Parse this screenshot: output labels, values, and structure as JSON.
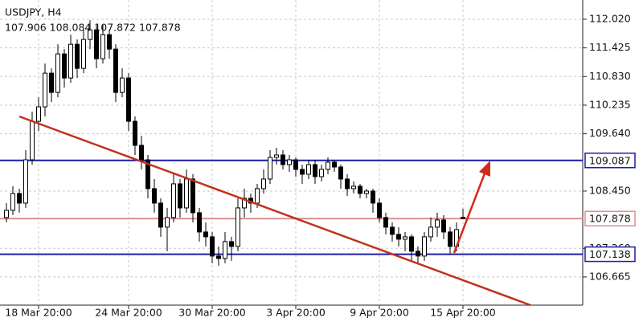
{
  "chart_data": {
    "type": "candlestick",
    "title": "USDJPY, H4",
    "subtitle": "107.906 108.084 107.872 107.878",
    "categories": [
      null,
      null,
      null,
      null,
      null,
      "18 Mar 20:00",
      null,
      null,
      null,
      null,
      null,
      null,
      null,
      null,
      null,
      null,
      null,
      null,
      null,
      "24 Mar 20:00",
      null,
      null,
      null,
      null,
      null,
      null,
      null,
      null,
      null,
      null,
      null,
      null,
      "30 Mar 20:00",
      null,
      null,
      null,
      null,
      null,
      null,
      null,
      null,
      null,
      null,
      null,
      null,
      "3 Apr 20:00",
      null,
      null,
      null,
      null,
      null,
      null,
      null,
      null,
      null,
      null,
      null,
      null,
      "9 Apr 20:00",
      null,
      null,
      null,
      null,
      null,
      null,
      null,
      null,
      null,
      null,
      null,
      null,
      "15 Apr 20:00"
    ],
    "ohlc": [
      [
        107.9,
        108.2,
        107.8,
        108.05
      ],
      [
        108.05,
        108.55,
        107.95,
        108.4
      ],
      [
        108.4,
        108.5,
        108.0,
        108.2
      ],
      [
        108.2,
        109.3,
        108.1,
        109.1
      ],
      [
        109.1,
        110.1,
        109.0,
        109.9
      ],
      [
        109.9,
        110.4,
        109.7,
        110.2
      ],
      [
        110.2,
        111.1,
        110.0,
        110.9
      ],
      [
        110.9,
        111.0,
        110.3,
        110.5
      ],
      [
        110.5,
        111.5,
        110.4,
        111.3
      ],
      [
        111.3,
        111.4,
        110.6,
        110.8
      ],
      [
        110.8,
        111.7,
        110.7,
        111.5
      ],
      [
        111.5,
        111.6,
        110.8,
        111.0
      ],
      [
        111.0,
        111.8,
        110.9,
        111.6
      ],
      [
        111.6,
        112.0,
        111.4,
        111.8
      ],
      [
        111.8,
        111.9,
        111.0,
        111.2
      ],
      [
        111.2,
        111.9,
        111.1,
        111.7
      ],
      [
        111.7,
        111.8,
        111.2,
        111.4
      ],
      [
        111.4,
        111.5,
        110.3,
        110.5
      ],
      [
        110.5,
        111.0,
        110.4,
        110.8
      ],
      [
        110.8,
        110.9,
        109.7,
        109.9
      ],
      [
        109.9,
        110.0,
        109.2,
        109.4
      ],
      [
        109.4,
        109.6,
        108.9,
        109.1
      ],
      [
        109.1,
        109.2,
        108.3,
        108.5
      ],
      [
        108.5,
        108.7,
        108.0,
        108.2
      ],
      [
        108.2,
        108.3,
        107.5,
        107.7
      ],
      [
        107.7,
        108.1,
        107.2,
        107.9
      ],
      [
        107.9,
        108.8,
        107.8,
        108.6
      ],
      [
        108.6,
        108.7,
        107.9,
        108.1
      ],
      [
        108.1,
        108.9,
        108.0,
        108.7
      ],
      [
        108.7,
        108.8,
        107.8,
        108.0
      ],
      [
        108.0,
        108.1,
        107.4,
        107.6
      ],
      [
        107.6,
        107.8,
        107.3,
        107.5
      ],
      [
        107.5,
        107.6,
        106.95,
        107.1
      ],
      [
        107.1,
        107.3,
        106.9,
        107.05
      ],
      [
        107.05,
        107.6,
        106.95,
        107.4
      ],
      [
        107.4,
        107.5,
        107.0,
        107.3
      ],
      [
        107.3,
        108.3,
        107.2,
        108.1
      ],
      [
        108.1,
        108.5,
        107.9,
        108.3
      ],
      [
        108.3,
        108.4,
        108.0,
        108.2
      ],
      [
        108.2,
        108.6,
        108.1,
        108.5
      ],
      [
        108.5,
        108.9,
        108.4,
        108.7
      ],
      [
        108.7,
        109.3,
        108.6,
        109.15
      ],
      [
        109.15,
        109.35,
        109.0,
        109.2
      ],
      [
        109.2,
        109.3,
        108.9,
        109.0
      ],
      [
        109.0,
        109.2,
        108.85,
        109.1
      ],
      [
        109.1,
        109.15,
        108.75,
        108.9
      ],
      [
        108.9,
        109.0,
        108.6,
        108.8
      ],
      [
        108.8,
        109.1,
        108.7,
        109.0
      ],
      [
        109.0,
        109.1,
        108.6,
        108.75
      ],
      [
        108.75,
        109.0,
        108.65,
        108.9
      ],
      [
        108.9,
        109.15,
        108.8,
        109.05
      ],
      [
        109.05,
        109.1,
        108.85,
        108.95
      ],
      [
        108.95,
        109.0,
        108.5,
        108.7
      ],
      [
        108.7,
        108.8,
        108.35,
        108.5
      ],
      [
        108.5,
        108.65,
        108.4,
        108.55
      ],
      [
        108.55,
        108.6,
        108.3,
        108.4
      ],
      [
        108.4,
        108.5,
        108.3,
        108.45
      ],
      [
        108.45,
        108.5,
        108.0,
        108.2
      ],
      [
        108.2,
        108.3,
        107.8,
        107.9
      ],
      [
        107.9,
        108.0,
        107.55,
        107.7
      ],
      [
        107.7,
        107.8,
        107.4,
        107.55
      ],
      [
        107.55,
        107.7,
        107.3,
        107.45
      ],
      [
        107.45,
        107.6,
        107.2,
        107.5
      ],
      [
        107.5,
        107.55,
        107.0,
        107.2
      ],
      [
        107.2,
        107.3,
        106.95,
        107.1
      ],
      [
        107.1,
        107.6,
        107.0,
        107.5
      ],
      [
        107.5,
        107.9,
        107.4,
        107.7
      ],
      [
        107.7,
        108.0,
        107.5,
        107.85
      ],
      [
        107.85,
        107.95,
        107.45,
        107.6
      ],
      [
        107.6,
        107.7,
        107.15,
        107.3
      ],
      [
        107.3,
        107.8,
        107.2,
        107.65
      ],
      [
        107.906,
        108.084,
        107.872,
        107.878
      ]
    ],
    "ylim": [
      106.08,
      112.42
    ],
    "yticks": [
      {
        "value": 112.02,
        "label": "112.020"
      },
      111.425,
      {
        "value": 110.83,
        "label": "110.830"
      },
      110.235,
      {
        "value": 109.64,
        "label": "109.640"
      },
      {
        "value": 108.45,
        "label": "108.450"
      },
      {
        "value": 107.26,
        "label": "107.260"
      },
      106.665
    ],
    "levels": [
      {
        "value": 109.087,
        "color": "#1c1ca8"
      },
      {
        "value": 107.878,
        "color": "#d89090"
      },
      {
        "value": 107.138,
        "color": "#1c1ca8"
      }
    ],
    "grid": true
  }
}
